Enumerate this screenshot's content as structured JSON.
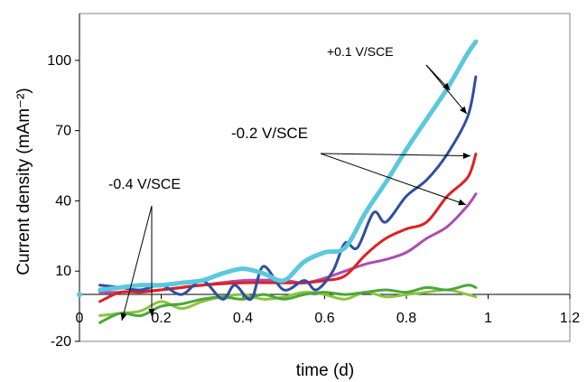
{
  "chart_data": {
    "type": "line",
    "xlabel": "time (d)",
    "ylabel": "Current density (mAm⁻²)",
    "xlim": [
      0,
      1.2
    ],
    "ylim": [
      -20,
      120
    ],
    "x_ticks": [
      "0",
      "0.2",
      "0.4",
      "0.6",
      "0.8",
      "1",
      "1.2"
    ],
    "y_ticks": [
      "-20",
      "10",
      "40",
      "70",
      "100"
    ],
    "grid": false,
    "legend": "none",
    "annotations": [
      {
        "text": "+0.1 V/SCE",
        "series": [
          "+0.1 V/SCE (a)",
          "+0.1 V/SCE (b)"
        ]
      },
      {
        "text": "-0.2 V/SCE",
        "series": [
          "-0.2 V/SCE (a)",
          "-0.2 V/SCE (b)"
        ]
      },
      {
        "text": "-0.4 V/SCE",
        "series": [
          "-0.4 V/SCE (a)",
          "-0.4 V/SCE (b)"
        ]
      }
    ],
    "series": [
      {
        "name": "+0.1 V/SCE (a)",
        "color": "#5bc8dc",
        "width": 5,
        "x": [
          0.05,
          0.1,
          0.15,
          0.2,
          0.25,
          0.3,
          0.35,
          0.4,
          0.45,
          0.5,
          0.55,
          0.6,
          0.65,
          0.7,
          0.75,
          0.8,
          0.85,
          0.9,
          0.95,
          0.97
        ],
        "y": [
          2,
          3,
          4,
          4,
          5,
          6,
          9,
          11,
          9,
          6,
          14,
          18,
          20,
          35,
          48,
          62,
          75,
          88,
          103,
          108
        ]
      },
      {
        "name": "+0.1 V/SCE (b)",
        "color": "#2e4fa0",
        "width": 3,
        "x": [
          0.05,
          0.1,
          0.15,
          0.2,
          0.25,
          0.3,
          0.35,
          0.38,
          0.42,
          0.45,
          0.5,
          0.55,
          0.58,
          0.62,
          0.65,
          0.68,
          0.72,
          0.75,
          0.8,
          0.85,
          0.9,
          0.95,
          0.97
        ],
        "y": [
          4,
          3,
          2,
          4,
          0,
          6,
          -2,
          4,
          -2,
          12,
          2,
          6,
          2,
          10,
          22,
          20,
          35,
          31,
          42,
          49,
          60,
          76,
          93
        ]
      },
      {
        "name": "-0.2 V/SCE (a)",
        "color": "#e02020",
        "width": 3,
        "x": [
          0.05,
          0.1,
          0.15,
          0.2,
          0.3,
          0.4,
          0.5,
          0.55,
          0.6,
          0.65,
          0.7,
          0.75,
          0.8,
          0.85,
          0.9,
          0.95,
          0.97
        ],
        "y": [
          -3,
          1,
          1,
          2,
          4,
          5,
          5,
          5,
          6,
          8,
          17,
          24,
          28,
          31,
          42,
          50,
          60
        ]
      },
      {
        "name": "-0.2 V/SCE (b)",
        "color": "#b04ab0",
        "width": 3,
        "x": [
          0.05,
          0.1,
          0.2,
          0.3,
          0.4,
          0.5,
          0.55,
          0.6,
          0.65,
          0.7,
          0.75,
          0.8,
          0.85,
          0.9,
          0.95,
          0.97
        ],
        "y": [
          1,
          1,
          2,
          4,
          6,
          6,
          5,
          7,
          10,
          13,
          15,
          18,
          24,
          29,
          38,
          43
        ]
      },
      {
        "name": "-0.4 V/SCE (a)",
        "color": "#8cc440",
        "width": 3,
        "x": [
          0.05,
          0.1,
          0.15,
          0.2,
          0.25,
          0.3,
          0.35,
          0.4,
          0.45,
          0.5,
          0.55,
          0.6,
          0.65,
          0.7,
          0.75,
          0.8,
          0.85,
          0.9,
          0.95,
          0.97
        ],
        "y": [
          -9,
          -8,
          -7,
          -3,
          -6,
          -3,
          -1,
          0,
          -2,
          -1,
          1,
          0,
          -2,
          1,
          -1,
          0,
          1,
          2,
          0,
          -1
        ]
      },
      {
        "name": "-0.4 V/SCE (b)",
        "color": "#4aa83a",
        "width": 3,
        "x": [
          0.05,
          0.1,
          0.15,
          0.2,
          0.25,
          0.3,
          0.35,
          0.4,
          0.45,
          0.5,
          0.55,
          0.6,
          0.65,
          0.7,
          0.75,
          0.8,
          0.85,
          0.9,
          0.95,
          0.97
        ],
        "y": [
          -12,
          -8,
          -9,
          -5,
          -4,
          -2,
          -1,
          -2,
          0,
          -2,
          0,
          1,
          0,
          1,
          2,
          1,
          3,
          2,
          4,
          3
        ]
      }
    ]
  }
}
